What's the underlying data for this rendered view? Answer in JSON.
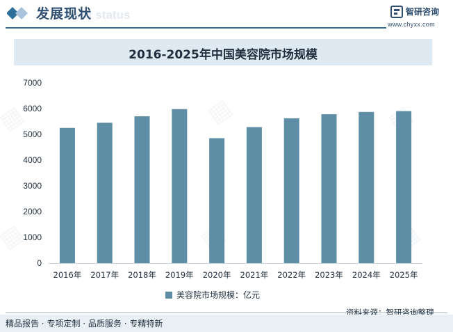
{
  "header": {
    "title": "发展现状",
    "ghost_text": "ment status",
    "brand_name": "智研咨询",
    "brand_url": "www.chyxx.com"
  },
  "chart_data": {
    "type": "bar",
    "title": "2016-2025年中国美容院市场规模",
    "categories": [
      "2016年",
      "2017年",
      "2018年",
      "2019年",
      "2020年",
      "2021年",
      "2022年",
      "2023年",
      "2024年",
      "2025年"
    ],
    "series": [
      {
        "name": "美容院市场规模：亿元",
        "values": [
          5250,
          5450,
          5700,
          5980,
          4850,
          5280,
          5620,
          5780,
          5870,
          5900
        ]
      }
    ],
    "y_ticks": [
      "0",
      "1000",
      "2000",
      "3000",
      "4000",
      "5000",
      "6000",
      "7000"
    ],
    "ylim": [
      0,
      7000
    ],
    "grid": false,
    "legend_position": "bottom",
    "bar_color": "#5d8ea6"
  },
  "footer": {
    "source": "资料来源：智研咨询整理",
    "slogan": "精品报告 · 专项定制 · 品质服务 · 专精特新"
  },
  "colors": {
    "accent": "#2f6f9a",
    "title_band": "#dfe9f1",
    "bar": "#5d8ea6"
  }
}
